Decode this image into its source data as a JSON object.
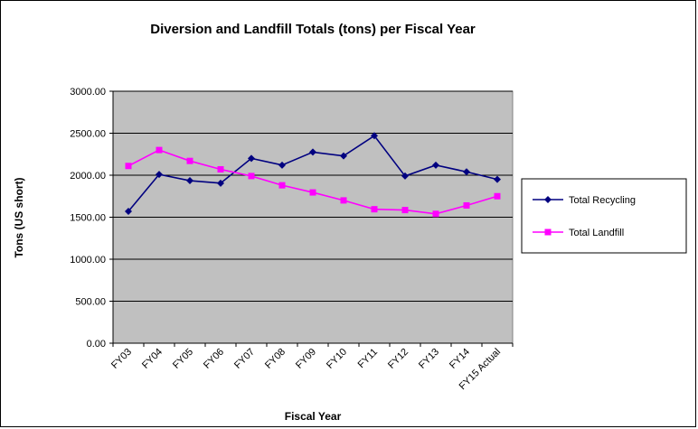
{
  "chart_data": {
    "type": "line",
    "title": "Diversion and Landfill Totals (tons) per Fiscal Year",
    "xlabel": "Fiscal Year",
    "ylabel": "Tons (US short)",
    "categories": [
      "FY03",
      "FY04",
      "FY05",
      "FY06",
      "FY07",
      "FY08",
      "FY09",
      "FY10",
      "FY11",
      "FY12",
      "FY13",
      "FY14",
      "FY15 Actual"
    ],
    "ylim": [
      0,
      3000
    ],
    "yticks": [
      "0.00",
      "500.00",
      "1000.00",
      "1500.00",
      "2000.00",
      "2500.00",
      "3000.00"
    ],
    "grid": true,
    "legend_position": "right",
    "plot_background": "#c0c0c0",
    "series": [
      {
        "name": "Total Recycling",
        "color": "#000080",
        "marker": "diamond",
        "values": [
          1570,
          2010,
          1935,
          1905,
          2200,
          2120,
          2275,
          2230,
          2470,
          1990,
          2120,
          2040,
          1950
        ]
      },
      {
        "name": "Total Landfill",
        "color": "#ff00ff",
        "marker": "square",
        "values": [
          2110,
          2300,
          2170,
          2070,
          1990,
          1880,
          1795,
          1700,
          1595,
          1585,
          1540,
          1640,
          1750
        ]
      }
    ]
  }
}
